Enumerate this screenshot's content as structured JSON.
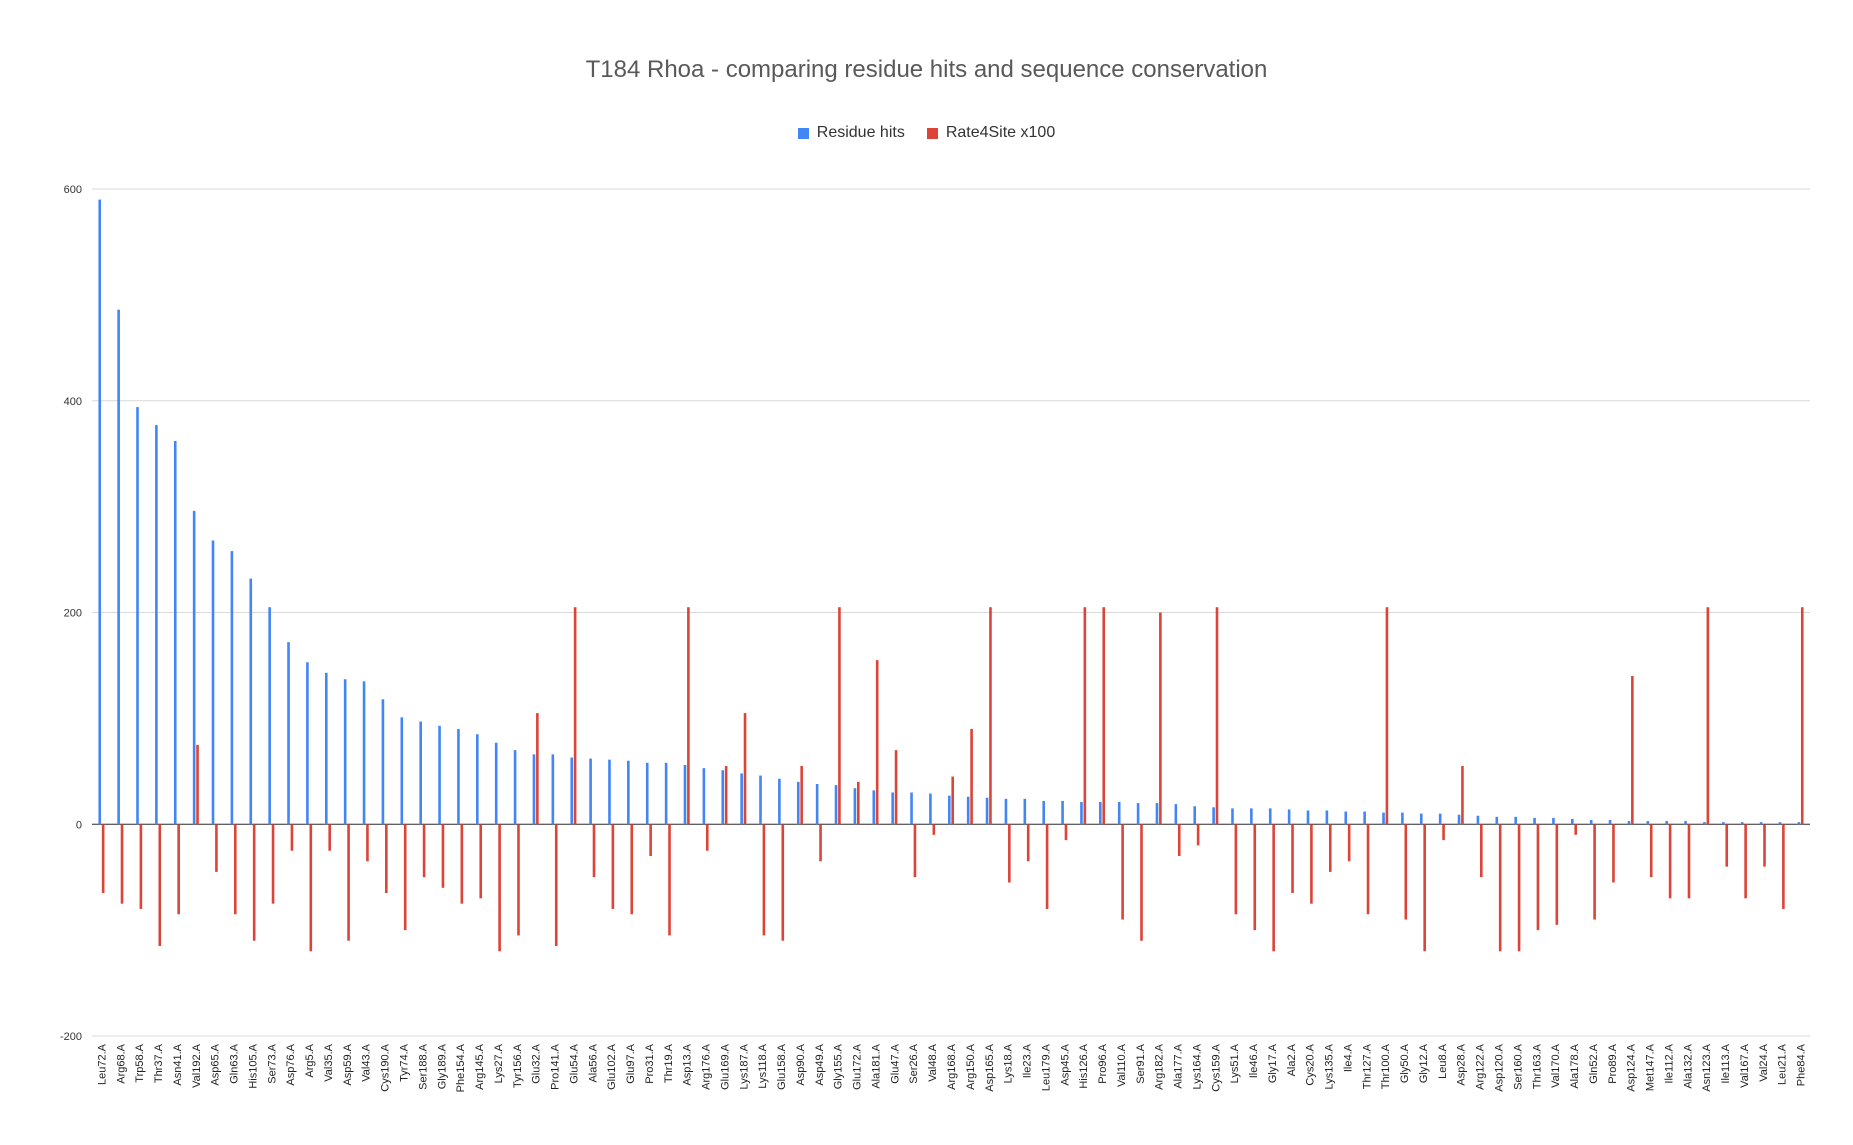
{
  "chart_data": {
    "type": "bar",
    "title": "T184 Rhoa - comparing residue hits and sequence conservation",
    "ylim": [
      -200,
      600
    ],
    "yticks": [
      600,
      400,
      200,
      0,
      -200
    ],
    "grid": true,
    "legend_position": "top",
    "categories": [
      "Leu72.A",
      "Arg68.A",
      "Trp58.A",
      "Thr37.A",
      "Asn41.A",
      "Val192.A",
      "Asp65.A",
      "Gln63.A",
      "His105.A",
      "Ser73.A",
      "Asp76.A",
      "Arg5.A",
      "Val35.A",
      "Asp59.A",
      "Val43.A",
      "Cys190.A",
      "Tyr74.A",
      "Ser188.A",
      "Gly189.A",
      "Phe154.A",
      "Arg145.A",
      "Lys27.A",
      "Tyr156.A",
      "Glu32.A",
      "Pro141.A",
      "Glu54.A",
      "Ala56.A",
      "Glu102.A",
      "Glu97.A",
      "Pro31.A",
      "Thr19.A",
      "Asp13.A",
      "Arg176.A",
      "Glu169.A",
      "Lys187.A",
      "Lys118.A",
      "Glu158.A",
      "Asp90.A",
      "Asp49.A",
      "Gly155.A",
      "Glu172.A",
      "Ala181.A",
      "Glu47.A",
      "Ser26.A",
      "Val48.A",
      "Arg168.A",
      "Arg150.A",
      "Asp165.A",
      "Lys18.A",
      "Ile23.A",
      "Leu179.A",
      "Asp45.A",
      "His126.A",
      "Pro96.A",
      "Val110.A",
      "Ser91.A",
      "Arg182.A",
      "Ala177.A",
      "Lys164.A",
      "Cys159.A",
      "Lys51.A",
      "Ile46.A",
      "Gly17.A",
      "Ala2.A",
      "Cys20.A",
      "Lys135.A",
      "Ile4.A",
      "Thr127.A",
      "Thr100.A",
      "Gly50.A",
      "Gly12.A",
      "Leu8.A",
      "Asp28.A",
      "Arg122.A",
      "Asp120.A",
      "Ser160.A",
      "Thr163.A",
      "Val170.A",
      "Ala178.A",
      "Gln52.A",
      "Pro89.A",
      "Asp124.A",
      "Met147.A",
      "Ile112.A",
      "Ala132.A",
      "Asn123.A",
      "Ile113.A",
      "Val167.A",
      "Val24.A",
      "Leu21.A",
      "Phe84.A"
    ],
    "series": [
      {
        "name": "Residue hits",
        "color": "#4285f4",
        "values": [
          590,
          486,
          394,
          377,
          362,
          296,
          268,
          258,
          232,
          205,
          172,
          153,
          143,
          137,
          135,
          118,
          101,
          97,
          93,
          90,
          85,
          77,
          70,
          66,
          66,
          63,
          62,
          61,
          60,
          58,
          58,
          56,
          53,
          51,
          48,
          46,
          43,
          40,
          38,
          37,
          34,
          32,
          30,
          30,
          29,
          27,
          26,
          25,
          24,
          24,
          22,
          22,
          21,
          21,
          21,
          20,
          20,
          19,
          17,
          16,
          15,
          15,
          15,
          14,
          13,
          13,
          12,
          12,
          11,
          11,
          10,
          10,
          9,
          8,
          7,
          7,
          6,
          6,
          5,
          4,
          4,
          3,
          3,
          3,
          3,
          2,
          2,
          2,
          2,
          2,
          2
        ]
      },
      {
        "name": "Rate4Site x100",
        "color": "#db4437",
        "values": [
          -65,
          -75,
          -80,
          -115,
          -85,
          75,
          -45,
          -85,
          -110,
          -75,
          -25,
          -120,
          -25,
          -110,
          -35,
          -65,
          -100,
          -50,
          -60,
          -75,
          -70,
          -120,
          -105,
          105,
          -115,
          205,
          -50,
          -80,
          -85,
          -30,
          -105,
          205,
          -25,
          55,
          105,
          -105,
          -110,
          55,
          -35,
          205,
          40,
          155,
          70,
          -50,
          -10,
          45,
          90,
          205,
          -55,
          -35,
          -80,
          -15,
          205,
          205,
          -90,
          -110,
          200,
          -30,
          -20,
          205,
          -85,
          -100,
          -120,
          -65,
          -75,
          -45,
          -35,
          -85,
          205,
          -90,
          -120,
          -15,
          55,
          -50,
          -120,
          -120,
          -100,
          -95,
          -10,
          -90,
          -55,
          140,
          -50,
          -70,
          -70,
          205,
          -40,
          -70,
          -40,
          -80,
          205
        ]
      }
    ]
  }
}
